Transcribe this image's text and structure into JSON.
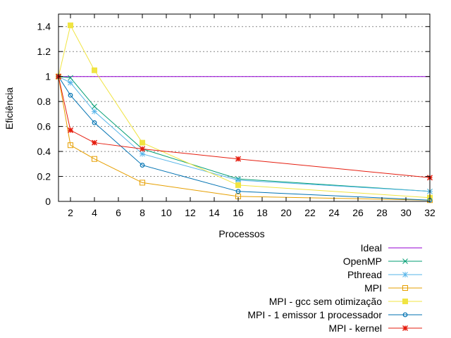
{
  "chart_data": {
    "type": "line",
    "title": "",
    "xlabel": "Processos",
    "ylabel": "Eficiência",
    "xlim": [
      1,
      32
    ],
    "ylim": [
      0,
      1.5
    ],
    "xticks": [
      2,
      4,
      6,
      8,
      10,
      12,
      14,
      16,
      18,
      20,
      22,
      24,
      26,
      28,
      30,
      32
    ],
    "yticks": [
      0,
      0.2,
      0.4,
      0.6,
      0.8,
      1,
      1.2,
      1.4
    ],
    "ytick_labels": [
      "0",
      "0.2",
      "0.4",
      "0.6",
      "0.8",
      "1",
      "1.2",
      "1.4"
    ],
    "grid": "horizontal dashed",
    "legend_position": "below-right",
    "series": [
      {
        "name": "Ideal",
        "color": "#9400d3",
        "marker": "none",
        "x": [
          1,
          32
        ],
        "y": [
          1,
          1
        ]
      },
      {
        "name": "OpenMP",
        "color": "#009e73",
        "marker": "x",
        "x": [
          1,
          2,
          4,
          8,
          16,
          32
        ],
        "y": [
          1,
          0.99,
          0.76,
          0.42,
          0.18,
          0.08
        ]
      },
      {
        "name": "Pthread",
        "color": "#56b4e9",
        "marker": "star",
        "x": [
          1,
          2,
          4,
          8,
          16,
          32
        ],
        "y": [
          1,
          0.95,
          0.72,
          0.38,
          0.17,
          0.08
        ]
      },
      {
        "name": "MPI",
        "color": "#e69f00",
        "marker": "open-square",
        "x": [
          1,
          2,
          4,
          8,
          16,
          32
        ],
        "y": [
          1,
          0.45,
          0.34,
          0.15,
          0.04,
          0.01
        ]
      },
      {
        "name": "MPI - gcc sem otimização",
        "color": "#f0e442",
        "marker": "filled-square",
        "x": [
          1,
          2,
          4,
          8,
          16,
          32
        ],
        "y": [
          1,
          1.41,
          1.05,
          0.47,
          0.13,
          0.03
        ]
      },
      {
        "name": "MPI - 1 emissor 1 processador",
        "color": "#0072b2",
        "marker": "open-circle",
        "x": [
          1,
          2,
          4,
          8,
          16,
          32
        ],
        "y": [
          1,
          0.85,
          0.63,
          0.29,
          0.08,
          0.01
        ]
      },
      {
        "name": "MPI - kernel",
        "color": "#e51e10",
        "marker": "filled-star",
        "x": [
          1,
          2,
          4,
          8,
          16,
          32
        ],
        "y": [
          1,
          0.57,
          0.47,
          0.42,
          0.34,
          0.19
        ]
      }
    ]
  }
}
